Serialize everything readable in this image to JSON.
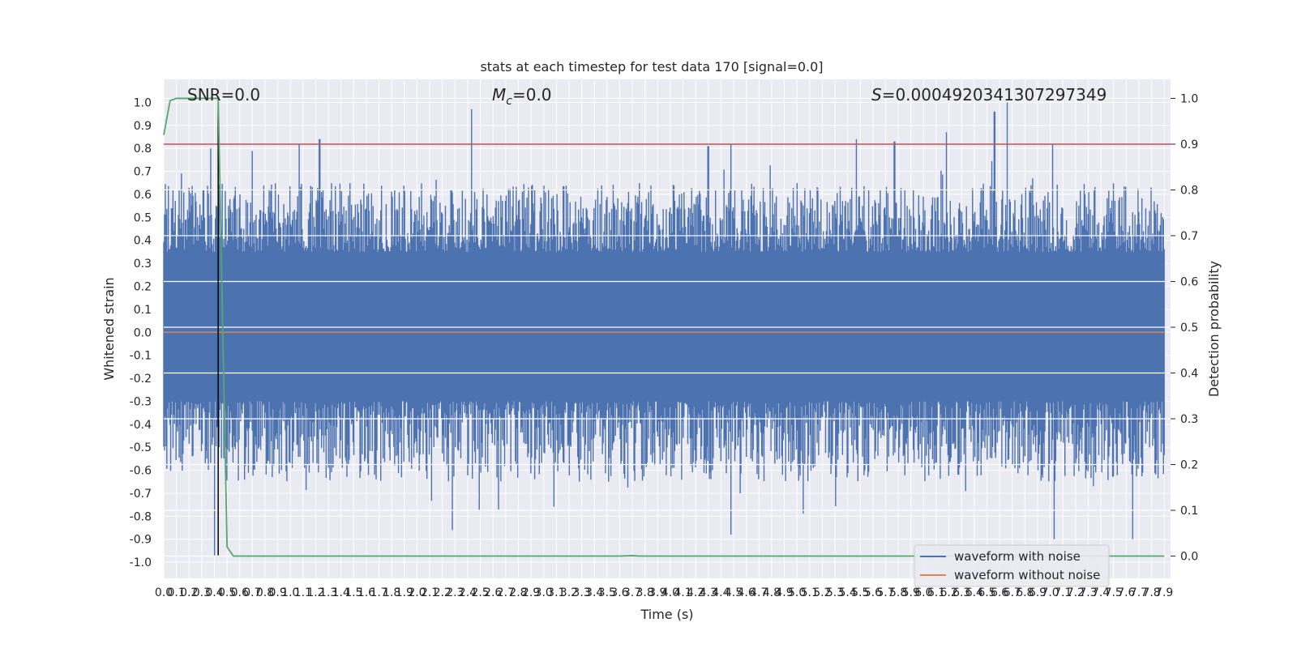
{
  "chart_data": {
    "type": "line",
    "title": "stats at each timestep for test data 170 [signal=0.0]",
    "xlabel": "Time (s)",
    "ylabel_left": "Whitened strain",
    "ylabel_right": "Detection probability",
    "xlim": [
      0.0,
      7.95
    ],
    "ylim_left": [
      -1.07,
      1.1
    ],
    "ylim_right": [
      -0.0487,
      1.0415
    ],
    "grid": true,
    "legend_position": "lower-right",
    "x_ticks": [
      "0.0",
      "0.1",
      "0.2",
      "0.3",
      "0.4",
      "0.5",
      "0.6",
      "0.7",
      "0.8",
      "0.9",
      "1.0",
      "1.1",
      "1.2",
      "1.3",
      "1.4",
      "1.5",
      "1.6",
      "1.7",
      "1.8",
      "1.9",
      "2.0",
      "2.1",
      "2.2",
      "2.3",
      "2.4",
      "2.5",
      "2.6",
      "2.7",
      "2.8",
      "2.9",
      "3.0",
      "3.1",
      "3.2",
      "3.3",
      "3.4",
      "3.5",
      "3.6",
      "3.7",
      "3.8",
      "3.9",
      "4.0",
      "4.1",
      "4.2",
      "4.3",
      "4.4",
      "4.5",
      "4.6",
      "4.7",
      "4.8",
      "4.9",
      "5.0",
      "5.1",
      "5.2",
      "5.3",
      "5.4",
      "5.5",
      "5.6",
      "5.7",
      "5.8",
      "5.9",
      "6.0",
      "6.1",
      "6.2",
      "6.3",
      "6.4",
      "6.5",
      "6.6",
      "6.7",
      "6.8",
      "6.9",
      "7.0",
      "7.1",
      "7.2",
      "7.3",
      "7.4",
      "7.5",
      "7.6",
      "7.7",
      "7.8",
      "7.9"
    ],
    "y_ticks_left": [
      "1.0",
      "0.9",
      "0.8",
      "0.7",
      "0.6",
      "0.5",
      "0.4",
      "0.3",
      "0.2",
      "0.1",
      "0.0",
      "-0.1",
      "-0.2",
      "-0.3",
      "-0.4",
      "-0.5",
      "-0.6",
      "-0.7",
      "-0.8",
      "-0.9",
      "-1.0"
    ],
    "y_ticks_right": [
      "1.0",
      "0.9",
      "0.8",
      "0.7",
      "0.6",
      "0.5",
      "0.4",
      "0.3",
      "0.2",
      "0.1",
      "0.0"
    ],
    "annotations": {
      "snr": "SNR=0.0",
      "mc_symbol": "M",
      "mc_sub": "c",
      "mc_value": "=0.0",
      "s_symbol": "S",
      "s_value": "=0.0004920341307297349"
    },
    "threshold_detection_probability": 0.9,
    "marker_time": 0.43,
    "series": [
      {
        "name": "waveform with noise",
        "axis": "left",
        "color": "#4c72b0",
        "amplitude_envelope": {
          "positive_typical": [
            0.35,
            0.65
          ],
          "negative_typical": [
            -0.3,
            -0.65
          ],
          "max": 1.0,
          "min": -0.97
        },
        "notable_peaks": [
          {
            "x": 0.37,
            "y": 0.8
          },
          {
            "x": 1.07,
            "y": 0.82
          },
          {
            "x": 1.23,
            "y": 0.84
          },
          {
            "x": 2.43,
            "y": 0.97
          },
          {
            "x": 4.3,
            "y": 0.81
          },
          {
            "x": 4.48,
            "y": 0.82
          },
          {
            "x": 5.47,
            "y": 0.84
          },
          {
            "x": 5.77,
            "y": 0.83
          },
          {
            "x": 6.18,
            "y": 0.87
          },
          {
            "x": 6.56,
            "y": 0.96
          },
          {
            "x": 6.66,
            "y": 1.0
          },
          {
            "x": 7.02,
            "y": 0.82
          },
          {
            "x": 0.4,
            "y": -0.97
          },
          {
            "x": 2.28,
            "y": -0.86
          },
          {
            "x": 4.48,
            "y": -0.88
          },
          {
            "x": 7.03,
            "y": -0.9
          },
          {
            "x": 7.65,
            "y": -0.9
          }
        ]
      },
      {
        "name": "waveform without noise",
        "axis": "left",
        "color": "#dd8452",
        "values_constant": 0.0
      },
      {
        "name": "",
        "axis": "right",
        "color": "#55a868",
        "points": [
          {
            "x": 0.0,
            "y": 0.92
          },
          {
            "x": 0.05,
            "y": 0.995
          },
          {
            "x": 0.1,
            "y": 1.0
          },
          {
            "x": 0.43,
            "y": 1.0
          },
          {
            "x": 0.5,
            "y": 0.02
          },
          {
            "x": 0.55,
            "y": 0.0
          },
          {
            "x": 3.6,
            "y": 0.0
          },
          {
            "x": 3.7,
            "y": 0.001
          },
          {
            "x": 3.75,
            "y": 0.0
          },
          {
            "x": 7.9,
            "y": 0.0
          }
        ]
      }
    ]
  }
}
